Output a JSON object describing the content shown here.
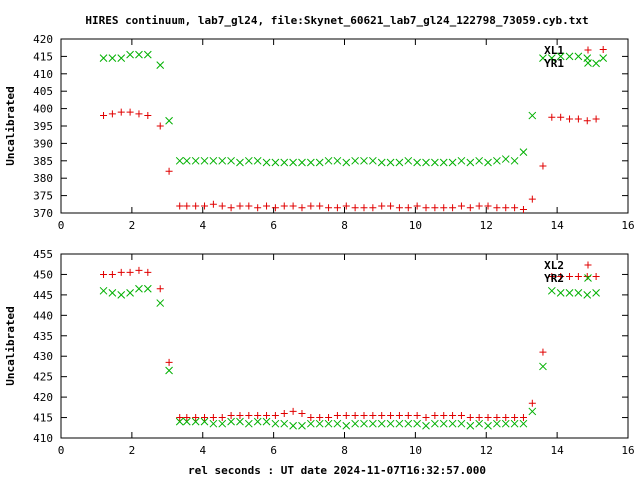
{
  "title": "HIRES continuum, lab7_gl24, file:Skynet_60621_lab7_gl24_122798_73059.cyb.txt",
  "xlabel": "rel seconds : UT date 2024-11-07T16:32:57.000",
  "colors": {
    "red": "#e00000",
    "green": "#00b000"
  },
  "chart_data": [
    {
      "type": "scatter",
      "title": "HIRES continuum, lab7_gl24, file:Skynet_60621_lab7_gl24_122798_73059.cyb.txt",
      "xlabel": "",
      "ylabel": "Uncalibrated",
      "xlim": [
        0,
        16
      ],
      "ylim": [
        370,
        420
      ],
      "xticks": [
        0,
        2,
        4,
        6,
        8,
        10,
        12,
        14,
        16
      ],
      "yticks": [
        370,
        375,
        380,
        385,
        390,
        395,
        400,
        405,
        410,
        415,
        420
      ],
      "legend_position": "top-right",
      "series": [
        {
          "name": "XL1",
          "marker": "+",
          "color": "#e00000",
          "x": [
            1.2,
            1.45,
            1.7,
            1.95,
            2.2,
            2.45,
            2.8,
            3.05,
            3.35,
            3.55,
            3.8,
            4.05,
            4.3,
            4.55,
            4.8,
            5.05,
            5.3,
            5.55,
            5.8,
            6.05,
            6.3,
            6.55,
            6.8,
            7.05,
            7.3,
            7.55,
            7.8,
            8.05,
            8.3,
            8.55,
            8.8,
            9.05,
            9.3,
            9.55,
            9.8,
            10.05,
            10.3,
            10.55,
            10.8,
            11.05,
            11.3,
            11.55,
            11.8,
            12.05,
            12.3,
            12.55,
            12.8,
            13.05,
            13.3,
            13.6,
            13.85,
            14.1,
            14.35,
            14.6,
            14.85,
            15.1,
            15.3
          ],
          "y": [
            398,
            398.5,
            399,
            399,
            398.5,
            398,
            395,
            382,
            372,
            372,
            372,
            372,
            372.5,
            372,
            371.5,
            372,
            372,
            371.5,
            372,
            371.5,
            372,
            372,
            371.5,
            372,
            372,
            371.5,
            371.5,
            372,
            371.5,
            371.5,
            371.5,
            372,
            372,
            371.5,
            371.5,
            372,
            371.5,
            371.5,
            371.5,
            371.5,
            372,
            371.5,
            372,
            372,
            371.5,
            371.5,
            371.5,
            371,
            374,
            383.5,
            397.5,
            397.5,
            397,
            397,
            396.5,
            397,
            417
          ]
        },
        {
          "name": "YR1",
          "marker": "x",
          "color": "#00b000",
          "x": [
            1.2,
            1.45,
            1.7,
            1.95,
            2.2,
            2.45,
            2.8,
            3.05,
            3.35,
            3.55,
            3.8,
            4.05,
            4.3,
            4.55,
            4.8,
            5.05,
            5.3,
            5.55,
            5.8,
            6.05,
            6.3,
            6.55,
            6.8,
            7.05,
            7.3,
            7.55,
            7.8,
            8.05,
            8.3,
            8.55,
            8.8,
            9.05,
            9.3,
            9.55,
            9.8,
            10.05,
            10.3,
            10.55,
            10.8,
            11.05,
            11.3,
            11.55,
            11.8,
            12.05,
            12.3,
            12.55,
            12.8,
            13.05,
            13.3,
            13.6,
            13.85,
            14.1,
            14.35,
            14.6,
            14.85,
            15.1,
            15.3
          ],
          "y": [
            414.5,
            414.5,
            414.5,
            415.5,
            415.5,
            415.5,
            412.5,
            396.5,
            385,
            385,
            385,
            385,
            385,
            385,
            385,
            384.5,
            385,
            385,
            384.5,
            384.5,
            384.5,
            384.5,
            384.5,
            384.5,
            384.5,
            385,
            385,
            384.5,
            385,
            385,
            385,
            384.5,
            384.5,
            384.5,
            385,
            384.5,
            384.5,
            384.5,
            384.5,
            384.5,
            385,
            384.5,
            385,
            384.5,
            385,
            385.5,
            385,
            387.5,
            398,
            414.5,
            414.5,
            415,
            415,
            415,
            414.5,
            413,
            414.5
          ]
        }
      ]
    },
    {
      "type": "scatter",
      "ylabel": "Uncalibrated",
      "xlabel": "rel seconds : UT date 2024-11-07T16:32:57.000",
      "xlim": [
        0,
        16
      ],
      "ylim": [
        410,
        455
      ],
      "xticks": [
        0,
        2,
        4,
        6,
        8,
        10,
        12,
        14,
        16
      ],
      "yticks": [
        410,
        415,
        420,
        425,
        430,
        435,
        440,
        445,
        450,
        455
      ],
      "legend_position": "top-right",
      "series": [
        {
          "name": "XL2",
          "marker": "+",
          "color": "#e00000",
          "x": [
            1.2,
            1.45,
            1.7,
            1.95,
            2.2,
            2.45,
            2.8,
            3.05,
            3.35,
            3.55,
            3.8,
            4.05,
            4.3,
            4.55,
            4.8,
            5.05,
            5.3,
            5.55,
            5.8,
            6.05,
            6.3,
            6.55,
            6.8,
            7.05,
            7.3,
            7.55,
            7.8,
            8.05,
            8.3,
            8.55,
            8.8,
            9.05,
            9.3,
            9.55,
            9.8,
            10.05,
            10.3,
            10.55,
            10.8,
            11.05,
            11.3,
            11.55,
            11.8,
            12.05,
            12.3,
            12.55,
            12.8,
            13.05,
            13.3,
            13.6,
            13.85,
            14.1,
            14.35,
            14.6,
            14.85,
            15.1
          ],
          "y": [
            450,
            450,
            450.5,
            450.5,
            451,
            450.5,
            446.5,
            428.5,
            415,
            415,
            415,
            415,
            415,
            415,
            415.5,
            415.5,
            415.5,
            415.5,
            415.5,
            415.5,
            416,
            416.5,
            416,
            415,
            415,
            415,
            415.5,
            415.5,
            415.5,
            415.5,
            415.5,
            415.5,
            415.5,
            415.5,
            415.5,
            415.5,
            415,
            415.5,
            415.5,
            415.5,
            415.5,
            415,
            415,
            415,
            415,
            415,
            415,
            415,
            418.5,
            431,
            449.5,
            449.5,
            449.5,
            449.5,
            449.5,
            449.5
          ]
        },
        {
          "name": "YR2",
          "marker": "x",
          "color": "#00b000",
          "x": [
            1.2,
            1.45,
            1.7,
            1.95,
            2.2,
            2.45,
            2.8,
            3.05,
            3.35,
            3.55,
            3.8,
            4.05,
            4.3,
            4.55,
            4.8,
            5.05,
            5.3,
            5.55,
            5.8,
            6.05,
            6.3,
            6.55,
            6.8,
            7.05,
            7.3,
            7.55,
            7.8,
            8.05,
            8.3,
            8.55,
            8.8,
            9.05,
            9.3,
            9.55,
            9.8,
            10.05,
            10.3,
            10.55,
            10.8,
            11.05,
            11.3,
            11.55,
            11.8,
            12.05,
            12.3,
            12.55,
            12.8,
            13.05,
            13.3,
            13.6,
            13.85,
            14.1,
            14.35,
            14.6,
            14.85,
            15.1
          ],
          "y": [
            446,
            445.5,
            445,
            445.5,
            446.5,
            446.5,
            443,
            426.5,
            414,
            414,
            414,
            414,
            413.5,
            413.5,
            414,
            414,
            413.5,
            414,
            414,
            413.5,
            413.5,
            413,
            413,
            413.5,
            413.5,
            413.5,
            413.5,
            413,
            413.5,
            413.5,
            413.5,
            413.5,
            413.5,
            413.5,
            413.5,
            413.5,
            413,
            413.5,
            413.5,
            413.5,
            413.5,
            413,
            413.5,
            413,
            413.5,
            413.5,
            413.5,
            413.5,
            416.5,
            427.5,
            446,
            445.5,
            445.5,
            445.5,
            445,
            445.5
          ]
        }
      ]
    }
  ]
}
